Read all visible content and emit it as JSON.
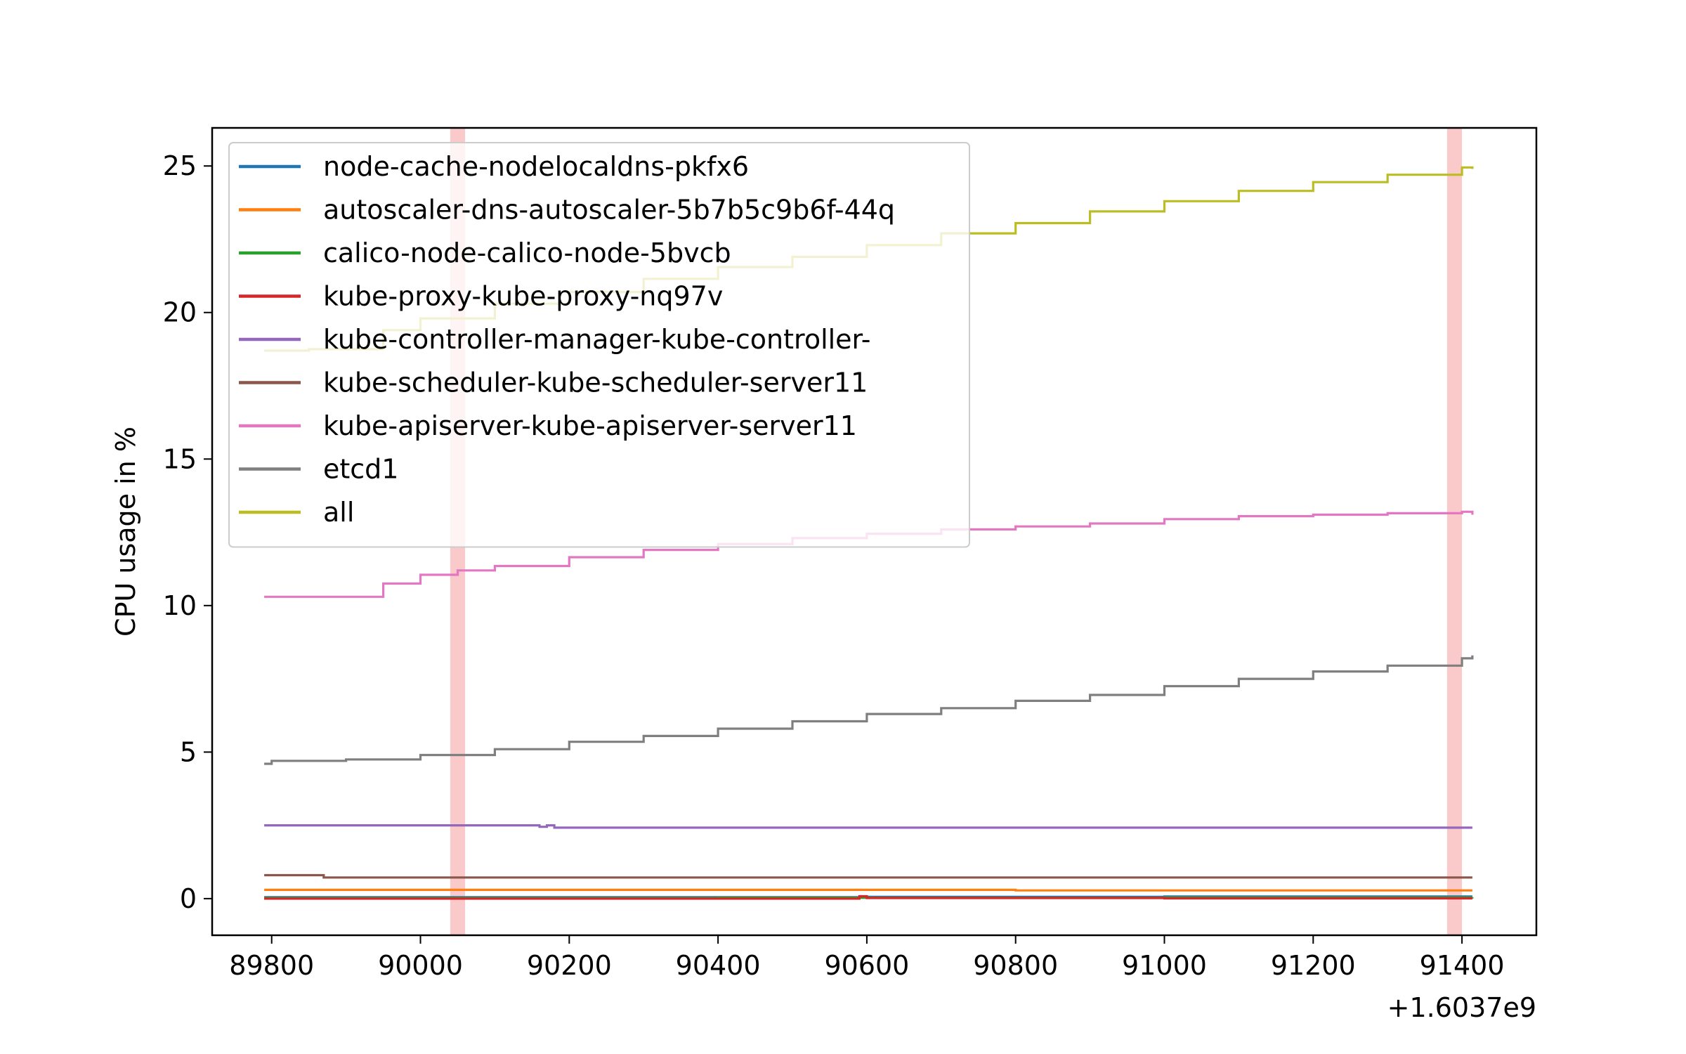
{
  "chart_data": {
    "type": "line",
    "title": "",
    "xlabel": "",
    "ylabel": "CPU usage in %",
    "x_offset_label": "+1.6037e9",
    "xlim": [
      89720,
      91500
    ],
    "ylim": [
      -1.25,
      26.3
    ],
    "x_ticks": [
      89800,
      90000,
      90200,
      90400,
      90600,
      90800,
      91000,
      91200,
      91400
    ],
    "y_ticks": [
      0,
      5,
      10,
      15,
      20,
      25
    ],
    "grid": false,
    "legend_position": "upper-left",
    "highlight_spans": [
      {
        "x0": 90040,
        "x1": 90060,
        "color": "#f8b7b7"
      },
      {
        "x0": 91380,
        "x1": 91400,
        "color": "#f8b7b7"
      }
    ],
    "series": [
      {
        "name": "node-cache-nodelocaldns-pkfx6",
        "color": "#1f77b4",
        "x": [
          89790,
          90000,
          90400,
          90600,
          91000,
          91414
        ],
        "values": [
          0.05,
          0.05,
          0.05,
          0.06,
          0.07,
          0.07
        ]
      },
      {
        "name": "autoscaler-dns-autoscaler-5b7b5c9b6f-44q",
        "color": "#ff7f0e",
        "x": [
          89790,
          90400,
          90800,
          91414
        ],
        "values": [
          0.3,
          0.3,
          0.28,
          0.28
        ]
      },
      {
        "name": "calico-node-calico-node-5bvcb",
        "color": "#2ca02c",
        "x": [
          89790,
          90400,
          91000,
          91414
        ],
        "values": [
          0.02,
          0.03,
          0.04,
          0.05
        ]
      },
      {
        "name": "kube-proxy-kube-proxy-nq97v",
        "color": "#d62728",
        "x": [
          89790,
          90580,
          90590,
          90600,
          91000,
          91414
        ],
        "values": [
          0.0,
          0.0,
          0.08,
          0.02,
          0.01,
          0.01
        ]
      },
      {
        "name": "kube-controller-manager-kube-controller-",
        "color": "#9467bd",
        "x": [
          89790,
          90140,
          90160,
          90170,
          90180,
          90600,
          91000,
          91414
        ],
        "values": [
          2.5,
          2.5,
          2.45,
          2.5,
          2.42,
          2.42,
          2.42,
          2.42
        ]
      },
      {
        "name": "kube-scheduler-kube-scheduler-server11",
        "color": "#8c564b",
        "x": [
          89790,
          89860,
          89870,
          90200,
          91000,
          91414
        ],
        "values": [
          0.8,
          0.8,
          0.72,
          0.72,
          0.72,
          0.72
        ]
      },
      {
        "name": "kube-apiserver-kube-apiserver-server11",
        "color": "#e377c2",
        "x": [
          89790,
          89880,
          89950,
          90000,
          90050,
          90100,
          90200,
          90300,
          90400,
          90500,
          90600,
          90700,
          90800,
          90900,
          91000,
          91100,
          91200,
          91300,
          91400,
          91414
        ],
        "values": [
          10.3,
          10.3,
          10.75,
          11.05,
          11.2,
          11.35,
          11.65,
          11.9,
          12.1,
          12.3,
          12.45,
          12.6,
          12.7,
          12.8,
          12.95,
          13.05,
          13.1,
          13.15,
          13.2,
          13.1
        ]
      },
      {
        "name": "etcd1",
        "color": "#7f7f7f",
        "x": [
          89790,
          89800,
          89900,
          90000,
          90100,
          90200,
          90300,
          90400,
          90500,
          90600,
          90700,
          90800,
          90900,
          91000,
          91100,
          91200,
          91300,
          91400,
          91414
        ],
        "values": [
          4.6,
          4.7,
          4.75,
          4.9,
          5.1,
          5.35,
          5.55,
          5.8,
          6.05,
          6.3,
          6.5,
          6.75,
          6.95,
          7.25,
          7.5,
          7.75,
          7.95,
          8.2,
          8.3
        ]
      },
      {
        "name": "all",
        "color": "#bcbd22",
        "x": [
          89790,
          89850,
          89950,
          90000,
          90100,
          90200,
          90300,
          90400,
          90500,
          90600,
          90700,
          90800,
          90900,
          91000,
          91100,
          91200,
          91300,
          91400,
          91414
        ],
        "values": [
          18.7,
          18.75,
          19.4,
          19.8,
          20.3,
          20.7,
          21.15,
          21.55,
          21.9,
          22.3,
          22.7,
          23.05,
          23.45,
          23.8,
          24.15,
          24.45,
          24.7,
          24.95,
          24.9
        ]
      }
    ]
  }
}
